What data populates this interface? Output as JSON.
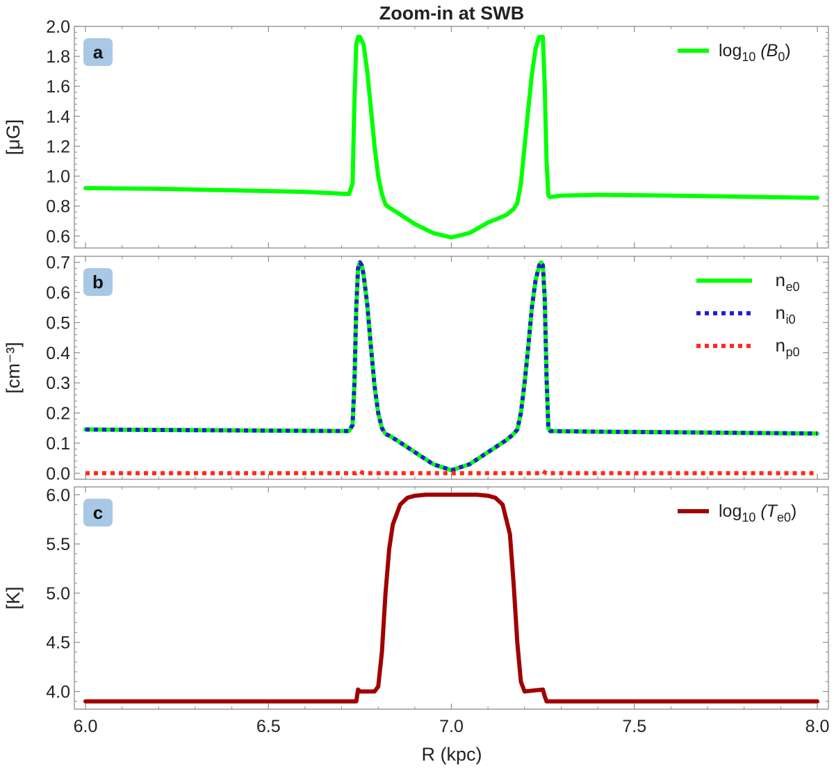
{
  "title": "Zoom-in at SWB",
  "x_axis": {
    "label": "R (kpc)",
    "range": [
      6.0,
      8.0
    ],
    "ticks": [
      6.0,
      6.5,
      7.0,
      7.5,
      8.0
    ],
    "tick_labels": [
      "6.0",
      "6.5",
      "7.0",
      "7.5",
      "8.0"
    ]
  },
  "colors": {
    "green": "#00ff00",
    "blue": "#1f1fd6",
    "red": "#ff2a1a",
    "darkred": "#a00000",
    "badge": "#a9c8e6"
  },
  "chart_data": [
    {
      "panel": "a",
      "type": "line",
      "ylabel": "[μG]",
      "ylim": [
        0.52,
        2.0
      ],
      "y_ticks": [
        0.6,
        0.8,
        1.0,
        1.2,
        1.4,
        1.6,
        1.8,
        2.0
      ],
      "y_tick_labels": [
        "0.6",
        "0.8",
        "1.0",
        "1.2",
        "1.4",
        "1.6",
        "1.8",
        "2.0"
      ],
      "legend_position": "top-right",
      "series": [
        {
          "name": "log10 (B0)",
          "legend_main": "log",
          "legend_sub": "10",
          "legend_tail": " (B",
          "legend_tail_sub": "0",
          "legend_end": ")",
          "color": "#00ff00",
          "style": "solid",
          "x": [
            6.0,
            6.2,
            6.4,
            6.6,
            6.72,
            6.73,
            6.735,
            6.74,
            6.745,
            6.75,
            6.76,
            6.77,
            6.78,
            6.79,
            6.8,
            6.81,
            6.82,
            6.83,
            6.85,
            6.9,
            6.95,
            7.0,
            7.05,
            7.1,
            7.15,
            7.17,
            7.18,
            7.19,
            7.2,
            7.21,
            7.22,
            7.23,
            7.24,
            7.245,
            7.25,
            7.255,
            7.26,
            7.265,
            7.27,
            7.3,
            7.4,
            7.6,
            7.8,
            8.0
          ],
          "y": [
            0.92,
            0.915,
            0.905,
            0.895,
            0.88,
            0.95,
            1.5,
            1.88,
            1.93,
            1.93,
            1.88,
            1.7,
            1.45,
            1.2,
            1.0,
            0.88,
            0.81,
            0.79,
            0.76,
            0.68,
            0.62,
            0.59,
            0.62,
            0.69,
            0.74,
            0.78,
            0.82,
            0.95,
            1.2,
            1.45,
            1.68,
            1.85,
            1.93,
            1.93,
            1.93,
            1.6,
            1.1,
            0.87,
            0.86,
            0.87,
            0.875,
            0.87,
            0.862,
            0.855
          ]
        }
      ]
    },
    {
      "panel": "b",
      "type": "line",
      "ylabel": "[cm⁻³]",
      "ylim": [
        -0.02,
        0.72
      ],
      "y_ticks": [
        0.0,
        0.1,
        0.2,
        0.3,
        0.4,
        0.5,
        0.6,
        0.7
      ],
      "y_tick_labels": [
        "0.0",
        "0.1",
        "0.2",
        "0.3",
        "0.4",
        "0.5",
        "0.6",
        "0.7"
      ],
      "legend_position": "top-right",
      "series": [
        {
          "name": "ne0",
          "legend_main": "n",
          "legend_sub": "e0",
          "color": "#00ff00",
          "style": "solid",
          "x": [
            6.0,
            6.3,
            6.6,
            6.72,
            6.73,
            6.735,
            6.74,
            6.745,
            6.75,
            6.755,
            6.76,
            6.77,
            6.78,
            6.79,
            6.8,
            6.81,
            6.82,
            6.83,
            6.85,
            6.9,
            6.95,
            7.0,
            7.05,
            7.1,
            7.15,
            7.17,
            7.18,
            7.19,
            7.2,
            7.21,
            7.22,
            7.23,
            7.24,
            7.245,
            7.25,
            7.255,
            7.26,
            7.265,
            7.27,
            7.4,
            7.6,
            7.8,
            8.0
          ],
          "y": [
            0.145,
            0.143,
            0.141,
            0.14,
            0.16,
            0.3,
            0.55,
            0.68,
            0.7,
            0.69,
            0.66,
            0.56,
            0.42,
            0.29,
            0.2,
            0.15,
            0.13,
            0.125,
            0.11,
            0.07,
            0.03,
            0.01,
            0.03,
            0.07,
            0.11,
            0.13,
            0.145,
            0.2,
            0.3,
            0.42,
            0.55,
            0.64,
            0.69,
            0.7,
            0.69,
            0.58,
            0.32,
            0.15,
            0.14,
            0.138,
            0.136,
            0.134,
            0.132
          ]
        },
        {
          "name": "ni0",
          "legend_main": "n",
          "legend_sub": "i0",
          "color": "#1f1fd6",
          "style": "dotted",
          "x": [
            6.0,
            6.3,
            6.6,
            6.72,
            6.73,
            6.735,
            6.74,
            6.745,
            6.75,
            6.755,
            6.76,
            6.77,
            6.78,
            6.79,
            6.8,
            6.81,
            6.82,
            6.83,
            6.85,
            6.9,
            6.95,
            7.0,
            7.05,
            7.1,
            7.15,
            7.17,
            7.18,
            7.19,
            7.2,
            7.21,
            7.22,
            7.23,
            7.24,
            7.245,
            7.25,
            7.255,
            7.26,
            7.265,
            7.27,
            7.4,
            7.6,
            7.8,
            8.0
          ],
          "y": [
            0.145,
            0.143,
            0.141,
            0.14,
            0.16,
            0.3,
            0.55,
            0.68,
            0.7,
            0.69,
            0.66,
            0.56,
            0.42,
            0.29,
            0.2,
            0.15,
            0.13,
            0.125,
            0.11,
            0.07,
            0.03,
            0.01,
            0.03,
            0.07,
            0.11,
            0.13,
            0.145,
            0.2,
            0.3,
            0.42,
            0.55,
            0.64,
            0.69,
            0.7,
            0.69,
            0.58,
            0.32,
            0.15,
            0.14,
            0.138,
            0.136,
            0.134,
            0.132
          ]
        },
        {
          "name": "np0",
          "legend_main": "n",
          "legend_sub": "p0",
          "color": "#ff2a1a",
          "style": "dotted",
          "x": [
            6.0,
            6.5,
            6.74,
            6.75,
            6.76,
            6.8,
            7.0,
            7.24,
            7.25,
            7.26,
            7.5,
            8.0
          ],
          "y": [
            0.0,
            0.0,
            0.0,
            0.006,
            0.0,
            0.0,
            0.0,
            0.0,
            0.006,
            0.0,
            0.0,
            0.0
          ]
        }
      ]
    },
    {
      "panel": "c",
      "type": "line",
      "ylabel": "[K]",
      "ylim": [
        3.82,
        6.08
      ],
      "y_ticks": [
        4.0,
        4.5,
        5.0,
        5.5,
        6.0
      ],
      "y_tick_labels": [
        "4.0",
        "4.5",
        "5.0",
        "5.5",
        "6.0"
      ],
      "legend_position": "top-right",
      "series": [
        {
          "name": "log10 (Te0)",
          "legend_main": "log",
          "legend_sub": "10",
          "legend_tail": " (T",
          "legend_tail_sub": "e0",
          "legend_end": ")",
          "color": "#a00000",
          "style": "solid",
          "x": [
            6.0,
            6.5,
            6.74,
            6.745,
            6.75,
            6.76,
            6.79,
            6.8,
            6.81,
            6.82,
            6.83,
            6.84,
            6.86,
            6.88,
            6.9,
            6.93,
            7.0,
            7.07,
            7.1,
            7.12,
            7.14,
            7.16,
            7.17,
            7.18,
            7.19,
            7.2,
            7.25,
            7.255,
            7.26,
            7.3,
            7.6,
            8.0
          ],
          "y": [
            3.9,
            3.9,
            3.9,
            4.02,
            4.0,
            4.0,
            4.0,
            4.05,
            4.4,
            5.0,
            5.45,
            5.7,
            5.9,
            5.97,
            5.99,
            6.0,
            6.0,
            6.0,
            5.99,
            5.97,
            5.9,
            5.6,
            5.1,
            4.5,
            4.1,
            4.0,
            4.02,
            3.95,
            3.9,
            3.9,
            3.9,
            3.9
          ]
        }
      ]
    }
  ]
}
